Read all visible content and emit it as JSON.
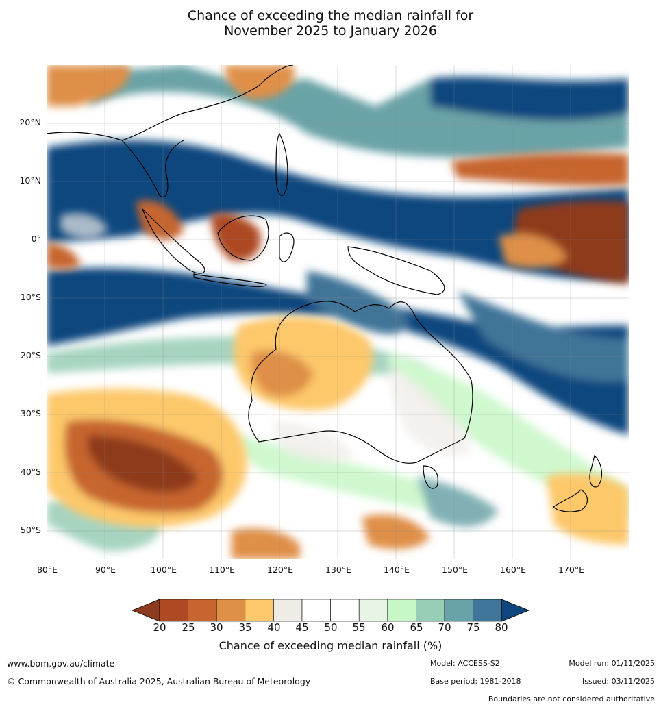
{
  "title": {
    "line1": "Chance of exceeding the median rainfall for",
    "line2": "November 2025 to January 2026"
  },
  "axes": {
    "lat_labels": [
      "20°N",
      "10°N",
      "0°",
      "10°S",
      "20°S",
      "30°S",
      "40°S",
      "50°S"
    ],
    "lon_labels": [
      "80°E",
      "90°E",
      "100°E",
      "110°E",
      "120°E",
      "130°E",
      "140°E",
      "150°E",
      "160°E",
      "170°E"
    ]
  },
  "colorbar": {
    "ticks": [
      "20",
      "25",
      "30",
      "35",
      "40",
      "45",
      "50",
      "55",
      "60",
      "65",
      "70",
      "75",
      "80"
    ],
    "colors": [
      "#8e3a1e",
      "#ad4a24",
      "#c6652f",
      "#df8f46",
      "#fdc86b",
      "#efebe7",
      "#ffffff",
      "#ffffff",
      "#e6f5e6",
      "#c7f7c6",
      "#98cdb6",
      "#6aa3a7",
      "#3f7598",
      "#10467e"
    ],
    "label": "Chance of exceeding median rainfall (%)"
  },
  "footer": {
    "website": "www.bom.gov.au/climate",
    "copyright": "© Commonwealth of Australia 2025, Australian Bureau of Meteorology",
    "model": "Model: ACCESS-S2",
    "base_period": "Base period: 1981-2018",
    "model_run": "Model run: 01/11/2025",
    "issued": "Issued: 03/11/2025",
    "disclaimer": "Boundaries are not considered authoritative"
  }
}
